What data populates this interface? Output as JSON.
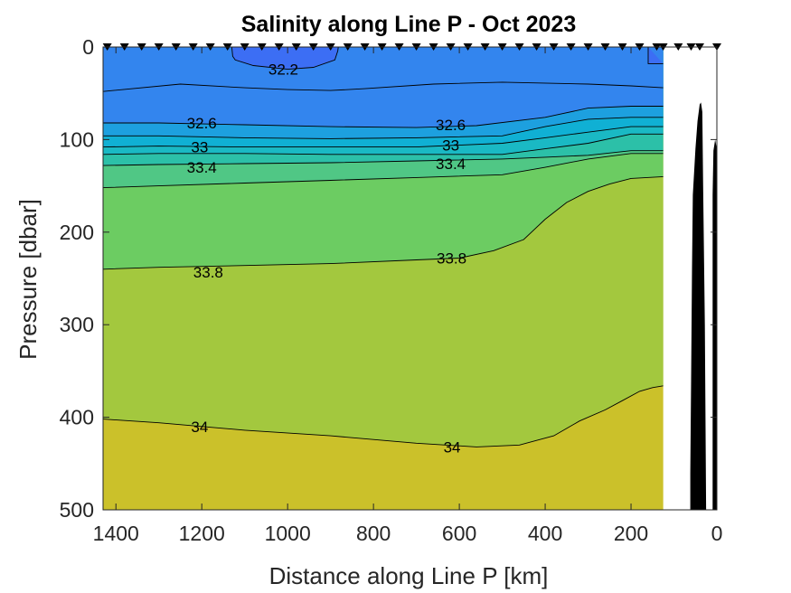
{
  "chart_data": {
    "type": "heatmap",
    "title": "Salinity along Line P - Oct 2023",
    "xlabel": "Distance along Line P [km]",
    "ylabel": "Pressure [dbar]",
    "xlim": [
      1430,
      0
    ],
    "ylim": [
      0,
      500
    ],
    "x_reversed": true,
    "y_reversed": true,
    "xticks": [
      1400,
      1200,
      1000,
      800,
      600,
      400,
      200,
      0
    ],
    "yticks": [
      0,
      100,
      200,
      300,
      400,
      500
    ],
    "data_extent_x": [
      1430,
      125
    ],
    "stations_km": [
      1420,
      1380,
      1340,
      1300,
      1260,
      1220,
      1180,
      1140,
      1100,
      1060,
      1020,
      980,
      940,
      900,
      860,
      820,
      780,
      740,
      700,
      660,
      620,
      580,
      540,
      500,
      460,
      420,
      380,
      340,
      300,
      260,
      220,
      180,
      140,
      125,
      90,
      60,
      40,
      0
    ],
    "fill_colors": {
      "lt_32_2": "#3c6ef4",
      "32_2_32_6": "#3385ee",
      "32_6_32_8": "#1da0df",
      "32_8_33": "#10b0d4",
      "33_33_2": "#1ab9c4",
      "33_2_33_4": "#2cc0a8",
      "33_4_33_8": "#6ccc62",
      "33_8_34": "#a3c83e",
      "gt_34": "#cbc12a"
    },
    "contours": [
      {
        "level": 32.2,
        "label": "32.2",
        "points": [
          [
            1130,
            0
          ],
          [
            1128,
            10
          ],
          [
            1122,
            14
          ],
          [
            1080,
            20
          ],
          [
            1000,
            24
          ],
          [
            940,
            22
          ],
          [
            890,
            14
          ],
          [
            883,
            4
          ],
          [
            882,
            0
          ]
        ]
      },
      {
        "level": 32.2,
        "label": "",
        "points": [
          [
            160,
            0
          ],
          [
            160,
            18
          ],
          [
            125,
            18
          ]
        ]
      },
      {
        "level": 32.4,
        "label": "",
        "points": [
          [
            1430,
            48
          ],
          [
            1250,
            40
          ],
          [
            1100,
            44
          ],
          [
            1000,
            46
          ],
          [
            900,
            47
          ],
          [
            820,
            45
          ],
          [
            660,
            40
          ],
          [
            500,
            38
          ],
          [
            300,
            40
          ],
          [
            200,
            42
          ],
          [
            125,
            44
          ]
        ]
      },
      {
        "level": 32.6,
        "label": "32.6",
        "points": [
          [
            1430,
            82
          ],
          [
            1300,
            82
          ],
          [
            1100,
            84
          ],
          [
            900,
            86
          ],
          [
            700,
            87
          ],
          [
            560,
            85
          ],
          [
            400,
            76
          ],
          [
            300,
            66
          ],
          [
            200,
            64
          ],
          [
            125,
            64
          ]
        ]
      },
      {
        "level": 32.8,
        "label": "",
        "points": [
          [
            1430,
            96
          ],
          [
            1300,
            96
          ],
          [
            1100,
            98
          ],
          [
            900,
            99
          ],
          [
            700,
            98
          ],
          [
            500,
            96
          ],
          [
            400,
            86
          ],
          [
            300,
            78
          ],
          [
            200,
            76
          ],
          [
            125,
            76
          ]
        ]
      },
      {
        "level": 33,
        "label": "33",
        "points": [
          [
            1430,
            108
          ],
          [
            1300,
            107
          ],
          [
            1100,
            108
          ],
          [
            900,
            108
          ],
          [
            700,
            108
          ],
          [
            500,
            104
          ],
          [
            400,
            98
          ],
          [
            300,
            92
          ],
          [
            200,
            86
          ],
          [
            125,
            86
          ]
        ]
      },
      {
        "level": 33.2,
        "label": "",
        "points": [
          [
            1430,
            116
          ],
          [
            1300,
            115
          ],
          [
            1100,
            115
          ],
          [
            900,
            116
          ],
          [
            700,
            116
          ],
          [
            500,
            116
          ],
          [
            400,
            110
          ],
          [
            300,
            104
          ],
          [
            200,
            94
          ],
          [
            125,
            94
          ]
        ]
      },
      {
        "level": 33.4,
        "label": "33.4",
        "points": [
          [
            1430,
            128
          ],
          [
            1300,
            127
          ],
          [
            1100,
            126
          ],
          [
            900,
            125
          ],
          [
            700,
            123
          ],
          [
            500,
            121
          ],
          [
            400,
            119
          ],
          [
            300,
            117
          ],
          [
            200,
            112
          ],
          [
            125,
            112
          ]
        ]
      },
      {
        "level": 33.6,
        "label": "",
        "points": [
          [
            1430,
            152
          ],
          [
            1300,
            150
          ],
          [
            1100,
            147
          ],
          [
            900,
            144
          ],
          [
            700,
            141
          ],
          [
            500,
            138
          ],
          [
            400,
            130
          ],
          [
            300,
            121
          ],
          [
            200,
            115
          ],
          [
            125,
            115
          ]
        ]
      },
      {
        "level": 33.8,
        "label": "33.8",
        "points": [
          [
            1430,
            240
          ],
          [
            1300,
            238
          ],
          [
            1100,
            236
          ],
          [
            900,
            234
          ],
          [
            700,
            230
          ],
          [
            600,
            228
          ],
          [
            520,
            220
          ],
          [
            450,
            208
          ],
          [
            400,
            186
          ],
          [
            350,
            168
          ],
          [
            300,
            156
          ],
          [
            250,
            148
          ],
          [
            200,
            142
          ],
          [
            125,
            140
          ]
        ]
      },
      {
        "level": 34,
        "label": "34",
        "points": [
          [
            1430,
            402
          ],
          [
            1300,
            406
          ],
          [
            1100,
            414
          ],
          [
            900,
            420
          ],
          [
            700,
            428
          ],
          [
            560,
            432
          ],
          [
            460,
            430
          ],
          [
            380,
            420
          ],
          [
            320,
            404
          ],
          [
            260,
            392
          ],
          [
            220,
            382
          ],
          [
            180,
            372
          ],
          [
            150,
            368
          ],
          [
            125,
            366
          ]
        ]
      }
    ],
    "contour_labels": [
      {
        "text": "32.2",
        "x": 1010,
        "y": 24
      },
      {
        "text": "32.6",
        "x": 1200,
        "y": 82
      },
      {
        "text": "32.6",
        "x": 620,
        "y": 84
      },
      {
        "text": "33",
        "x": 1205,
        "y": 108
      },
      {
        "text": "33",
        "x": 620,
        "y": 106
      },
      {
        "text": "33.4",
        "x": 1200,
        "y": 130
      },
      {
        "text": "33.4",
        "x": 620,
        "y": 126
      },
      {
        "text": "33.8",
        "x": 1185,
        "y": 243
      },
      {
        "text": "33.8",
        "x": 618,
        "y": 228
      },
      {
        "text": "34",
        "x": 1205,
        "y": 410
      },
      {
        "text": "34",
        "x": 617,
        "y": 432
      }
    ],
    "bathymetry": [
      [
        62,
        500
      ],
      [
        62,
        460
      ],
      [
        60,
        360
      ],
      [
        58,
        240
      ],
      [
        56,
        160
      ],
      [
        50,
        110
      ],
      [
        45,
        80
      ],
      [
        40,
        62
      ],
      [
        37,
        60
      ],
      [
        34,
        70
      ],
      [
        32,
        150
      ],
      [
        28,
        300
      ],
      [
        25,
        500
      ]
    ],
    "bathymetry_color": "#000000",
    "bathymetry_extra": [
      [
        10,
        500
      ],
      [
        10,
        160
      ],
      [
        8,
        112
      ],
      [
        4,
        100
      ],
      [
        0,
        110
      ],
      [
        0,
        500
      ]
    ],
    "grid": false,
    "legend": "none"
  }
}
